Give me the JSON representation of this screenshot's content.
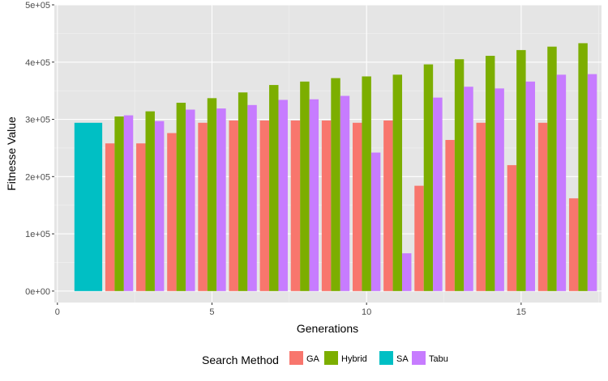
{
  "chart_data": {
    "type": "bar",
    "xlabel": "Generations",
    "ylabel": "Fitnesse Value",
    "xlim": [
      -0.1,
      17.6
    ],
    "ylim": [
      -20000,
      500000
    ],
    "x_ticks": [
      0,
      5,
      10,
      15
    ],
    "x_tick_labels": [
      "0",
      "5",
      "10",
      "15"
    ],
    "y_ticks": [
      0,
      100000,
      200000,
      300000,
      400000,
      500000
    ],
    "y_tick_labels": [
      "0e+00",
      "1e+05",
      "2e+05",
      "3e+05",
      "4e+05",
      "5e+05"
    ],
    "grid": true,
    "background": "#e5e5e5",
    "legend": {
      "title": "Search Method",
      "position": "bottom",
      "entries": [
        "GA",
        "Hybrid",
        "SA",
        "Tabu"
      ]
    },
    "series": [
      {
        "name": "GA",
        "color": "#f8766d",
        "x": [
          2,
          3,
          4,
          5,
          6,
          7,
          8,
          9,
          10,
          11,
          12,
          13,
          14,
          15,
          16,
          17
        ],
        "values": [
          258000,
          258000,
          276000,
          294000,
          298000,
          298000,
          298000,
          298000,
          294000,
          298000,
          184000,
          264000,
          294000,
          220000,
          294000,
          162000
        ]
      },
      {
        "name": "Hybrid",
        "color": "#7cae00",
        "x": [
          2,
          3,
          4,
          5,
          6,
          7,
          8,
          9,
          10,
          11,
          12,
          13,
          14,
          15,
          16,
          17
        ],
        "values": [
          305000,
          314000,
          329000,
          337000,
          347000,
          360000,
          366000,
          372000,
          375000,
          378000,
          396000,
          405000,
          411000,
          421000,
          427000,
          433000
        ]
      },
      {
        "name": "SA",
        "color": "#00bfc4",
        "x": [
          1
        ],
        "values": [
          294000
        ]
      },
      {
        "name": "Tabu",
        "color": "#c77cff",
        "x": [
          2,
          3,
          4,
          5,
          6,
          7,
          8,
          9,
          10,
          11,
          12,
          13,
          14,
          15,
          16,
          17
        ],
        "values": [
          307000,
          297000,
          317000,
          319000,
          325000,
          334000,
          335000,
          341000,
          242000,
          66000,
          338000,
          357000,
          354000,
          366000,
          378000,
          379000
        ]
      }
    ]
  }
}
